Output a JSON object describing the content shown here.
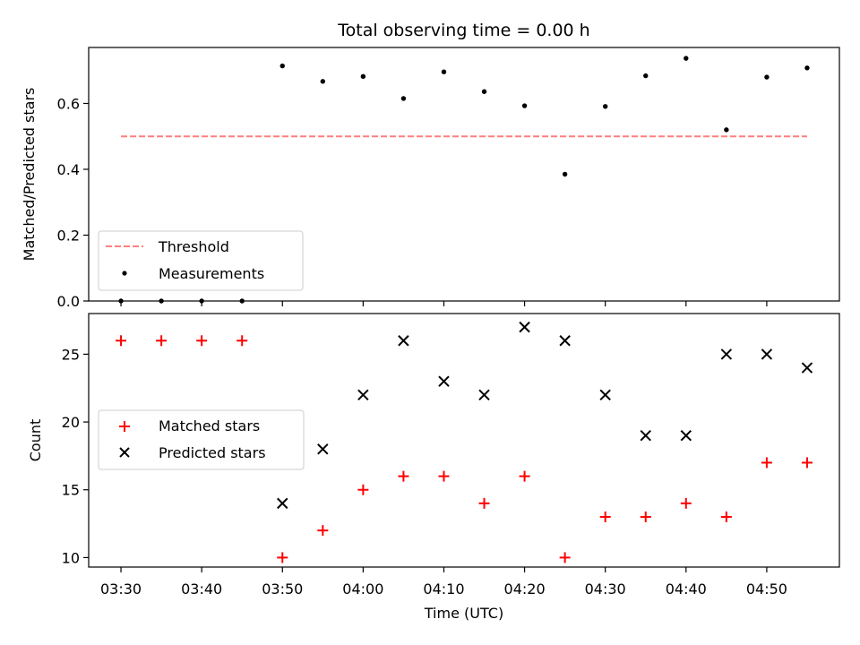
{
  "chart_data": {
    "title": "Total observing time = 0.00 h",
    "xlabel": "Time (UTC)",
    "x_ticks": [
      "03:30",
      "03:40",
      "03:50",
      "04:00",
      "04:10",
      "04:20",
      "04:30",
      "04:40",
      "04:50"
    ],
    "x": [
      "03:30",
      "03:35",
      "03:40",
      "03:45",
      "03:50",
      "03:55",
      "04:00",
      "04:05",
      "04:10",
      "04:15",
      "04:20",
      "04:25",
      "04:30",
      "04:35",
      "04:40",
      "04:45",
      "04:50",
      "04:55"
    ],
    "xlim": [
      "03:26",
      "04:59"
    ],
    "panels": [
      {
        "type": "scatter",
        "ylabel": "Matched/Predicted stars",
        "ylim": [
          0.0,
          0.77
        ],
        "yticks": [
          "0.0",
          "0.2",
          "0.4",
          "0.6"
        ],
        "ytick_values": [
          0.0,
          0.2,
          0.4,
          0.6
        ],
        "legend_position": "lower-left",
        "series": [
          {
            "name": "Threshold",
            "kind": "dashed-line",
            "color": "#ff7f7f",
            "values": [
              0.5,
              0.5
            ],
            "x_range": [
              "03:30",
              "04:55"
            ]
          },
          {
            "name": "Measurements",
            "kind": "dot",
            "color": "#000000",
            "values": [
              0.0,
              0.0,
              0.0,
              0.0,
              0.714,
              0.667,
              0.682,
              0.615,
              0.696,
              0.636,
              0.593,
              0.385,
              0.591,
              0.684,
              0.737,
              0.52,
              0.68,
              0.708
            ]
          }
        ]
      },
      {
        "type": "scatter",
        "ylabel": "Count",
        "ylim": [
          9.3,
          28.0
        ],
        "yticks": [
          "10",
          "15",
          "20",
          "25"
        ],
        "ytick_values": [
          10,
          15,
          20,
          25
        ],
        "legend_position": "center-left",
        "series": [
          {
            "name": "Matched stars",
            "kind": "plus",
            "color": "#ff0000",
            "values": [
              26,
              26,
              26,
              26,
              10,
              12,
              15,
              16,
              16,
              14,
              16,
              10,
              13,
              13,
              14,
              13,
              17,
              17
            ]
          },
          {
            "name": "Predicted stars",
            "kind": "cross",
            "color": "#000000",
            "values": [
              null,
              null,
              null,
              null,
              14,
              18,
              22,
              26,
              23,
              22,
              27,
              26,
              22,
              19,
              19,
              25,
              25,
              24
            ]
          }
        ]
      }
    ]
  }
}
